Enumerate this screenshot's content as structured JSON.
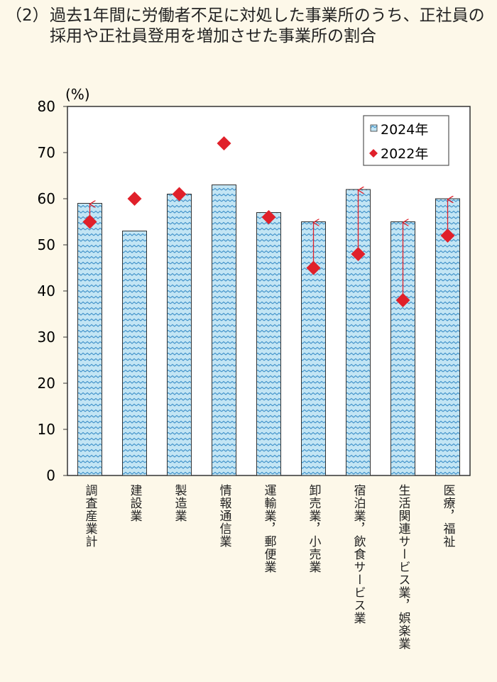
{
  "title": {
    "number": "（2）",
    "text": "過去1年間に労働者不足に対処した事業所のうち、正社員の採用や正社員登用を増加させた事業所の割合"
  },
  "chart_data": {
    "type": "bar",
    "ylabel": "(%)",
    "ylim": [
      0,
      80
    ],
    "yticks": [
      0,
      10,
      20,
      30,
      40,
      50,
      60,
      70,
      80
    ],
    "categories": [
      "調査産業計",
      "建設業",
      "製造業",
      "情報通信業",
      "運輸業，郵便業",
      "卸売業，小売業",
      "宿泊業，飲食サービス業",
      "生活関連サービス業，娯楽業",
      "医療，福祉"
    ],
    "series": [
      {
        "name": "2024年",
        "type": "bar",
        "values": [
          59,
          53,
          61,
          63,
          57,
          55,
          62,
          55,
          60
        ],
        "color": "#bfe3f3"
      },
      {
        "name": "2022年",
        "type": "scatter",
        "marker": "diamond",
        "values": [
          55,
          60,
          61,
          72,
          56,
          45,
          48,
          38,
          52
        ],
        "color": "#e0202a"
      }
    ],
    "arrows_from_2022_to_2024": [
      "調査産業計",
      "卸売業，小売業",
      "宿泊業，飲食サービス業",
      "生活関連サービス業，娯楽業",
      "医療，福祉"
    ],
    "legend": {
      "position": "top-right",
      "entries": [
        "2024年",
        "2022年"
      ]
    },
    "grid": false
  }
}
